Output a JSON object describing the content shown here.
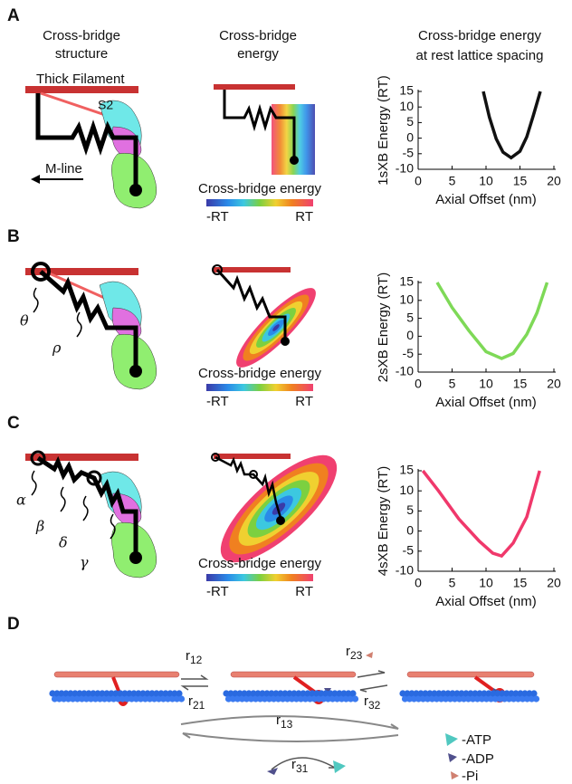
{
  "panels": {
    "letters": [
      "A",
      "B",
      "C",
      "D"
    ],
    "column_titles": [
      [
        "Cross-bridge",
        "structure"
      ],
      [
        "Cross-bridge",
        "energy"
      ],
      [
        "Cross-bridge energy",
        "at rest lattice spacing"
      ]
    ],
    "thick_filament": "Thick Filament",
    "s2": "S2",
    "m_line": "M-line",
    "colorbar": {
      "title": "Cross-bridge energy",
      "low": "-RT",
      "high": "RT"
    },
    "greek_b": [
      "θ",
      "ρ"
    ],
    "greek_c": [
      "α",
      "β",
      "δ",
      "γ"
    ]
  },
  "panel_d": {
    "rates": [
      {
        "name": "r",
        "sub": "12"
      },
      {
        "name": "r",
        "sub": "21"
      },
      {
        "name": "r",
        "sub": "23"
      },
      {
        "name": "r",
        "sub": "32"
      },
      {
        "name": "r",
        "sub": "13"
      },
      {
        "name": "r",
        "sub": "31"
      }
    ],
    "legend": [
      "-ATP",
      "-ADP",
      "-Pi"
    ]
  },
  "chart_data": [
    {
      "type": "line",
      "ylabel": "1sXB Energy (RT)",
      "xlabel": "Axial Offset (nm)",
      "color": "#111111",
      "x": [
        9.6,
        10.5,
        11.5,
        12.5,
        13.7,
        15,
        16,
        17,
        18
      ],
      "values": [
        15,
        6.7,
        -0.2,
        -4.5,
        -6.3,
        -4.2,
        0.4,
        7.5,
        15
      ],
      "xlim": [
        0,
        20
      ],
      "xticks": [
        0,
        5,
        10,
        15,
        20
      ],
      "ylim": [
        -10,
        15
      ],
      "yticks": [
        15,
        10,
        5,
        0,
        -5,
        -10
      ]
    },
    {
      "type": "line",
      "ylabel": "2sXB Energy (RT)",
      "xlabel": "Axial Offset (nm)",
      "color": "#7ed957",
      "x": [
        2.8,
        5,
        7.5,
        10,
        12.3,
        14,
        16,
        17.5,
        19
      ],
      "values": [
        15,
        8,
        1.5,
        -4.3,
        -6.2,
        -4.8,
        0.5,
        6.5,
        15
      ],
      "xlim": [
        0,
        20
      ],
      "xticks": [
        0,
        5,
        10,
        15,
        20
      ],
      "ylim": [
        -10,
        15
      ],
      "yticks": [
        15,
        10,
        5,
        0,
        -5,
        -10
      ]
    },
    {
      "type": "line",
      "ylabel": "4sXB Energy (RT)",
      "xlabel": "Axial Offset (nm)",
      "color": "#f0386b",
      "x": [
        0.7,
        3,
        6,
        9,
        11,
        12.3,
        14,
        16,
        17.9
      ],
      "values": [
        15,
        10,
        3,
        -2.5,
        -5.5,
        -6.2,
        -3,
        3.5,
        15
      ],
      "xlim": [
        0,
        20
      ],
      "xticks": [
        0,
        5,
        10,
        15,
        20
      ],
      "ylim": [
        -10,
        15
      ],
      "yticks": [
        15,
        10,
        5,
        0,
        -5,
        -10
      ]
    }
  ]
}
